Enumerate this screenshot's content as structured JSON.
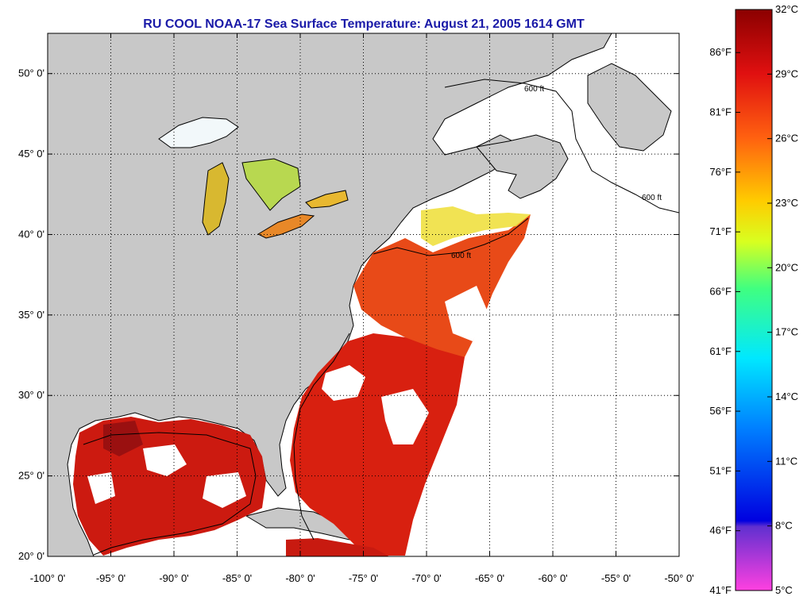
{
  "title": "RU COOL  NOAA-17  Sea Surface Temperature:  August 21, 2005 1614 GMT",
  "map": {
    "lat_labels": [
      {
        "value": 50,
        "label": "50° 0'"
      },
      {
        "value": 45,
        "label": "45° 0'"
      },
      {
        "value": 40,
        "label": "40° 0'"
      },
      {
        "value": 35,
        "label": "35° 0'"
      },
      {
        "value": 30,
        "label": "30° 0'"
      },
      {
        "value": 25,
        "label": "25° 0'"
      },
      {
        "value": 20,
        "label": "20° 0'"
      }
    ],
    "lon_labels": [
      {
        "value": -100,
        "label": "-100° 0'"
      },
      {
        "value": -95,
        "label": "-95° 0'"
      },
      {
        "value": -90,
        "label": "-90° 0'"
      },
      {
        "value": -85,
        "label": "-85° 0'"
      },
      {
        "value": -80,
        "label": "-80° 0'"
      },
      {
        "value": -75,
        "label": "-75° 0'"
      },
      {
        "value": -70,
        "label": "-70° 0'"
      },
      {
        "value": -65,
        "label": "-65° 0'"
      },
      {
        "value": -60,
        "label": "-60° 0'"
      },
      {
        "value": -55,
        "label": "-55° 0'"
      },
      {
        "value": -50,
        "label": "-50° 0'"
      }
    ],
    "lat_range": [
      20,
      52.5
    ],
    "lon_range": [
      -100,
      -50
    ],
    "contour_label": "600 ft",
    "land_color": "#c8c8c8",
    "no_data_color": "#ffffff"
  },
  "colorbar": {
    "celsius_labels": [
      {
        "value": 32,
        "label": "32°C"
      },
      {
        "value": 29,
        "label": "29°C"
      },
      {
        "value": 26,
        "label": "26°C"
      },
      {
        "value": 23,
        "label": "23°C"
      },
      {
        "value": 20,
        "label": "20°C"
      },
      {
        "value": 17,
        "label": "17°C"
      },
      {
        "value": 14,
        "label": "14°C"
      },
      {
        "value": 11,
        "label": "11°C"
      },
      {
        "value": 8,
        "label": "8°C"
      },
      {
        "value": 5,
        "label": "5°C"
      }
    ],
    "fahrenheit_labels": [
      {
        "value": 86,
        "label": "86°F"
      },
      {
        "value": 81,
        "label": "81°F"
      },
      {
        "value": 76,
        "label": "76°F"
      },
      {
        "value": 71,
        "label": "71°F"
      },
      {
        "value": 66,
        "label": "66°F"
      },
      {
        "value": 61,
        "label": "61°F"
      },
      {
        "value": 56,
        "label": "56°F"
      },
      {
        "value": 51,
        "label": "51°F"
      },
      {
        "value": 46,
        "label": "46°F"
      },
      {
        "value": 41,
        "label": "41°F"
      }
    ],
    "range_c": [
      5,
      32
    ]
  }
}
